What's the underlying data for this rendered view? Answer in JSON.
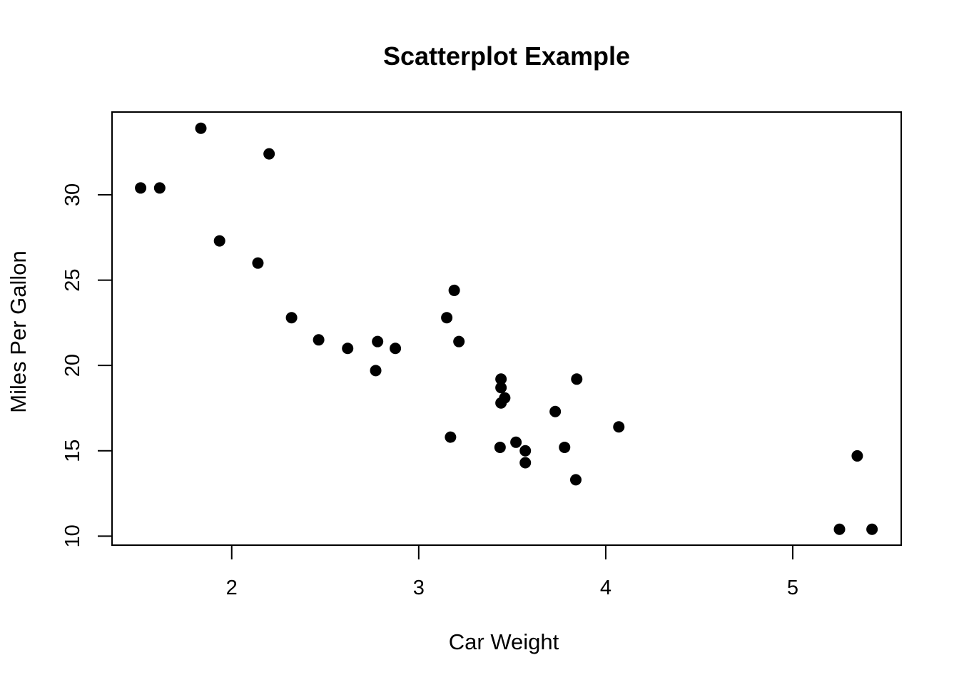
{
  "chart_data": {
    "type": "scatter",
    "title": "Scatterplot Example",
    "xlabel": "Car Weight",
    "ylabel": "Miles Per Gallon",
    "xlim": [
      1.36,
      5.58
    ],
    "ylim": [
      9.47,
      34.85
    ],
    "x_ticks": [
      2,
      3,
      4,
      5
    ],
    "y_ticks": [
      10,
      15,
      20,
      25,
      30
    ],
    "x_tick_labels": [
      "2",
      "3",
      "4",
      "5"
    ],
    "y_tick_labels": [
      "10",
      "15",
      "20",
      "25",
      "30"
    ],
    "grid": false,
    "legend": "none",
    "marker_color": "#000000",
    "points": [
      {
        "x": 2.62,
        "y": 21.0
      },
      {
        "x": 2.875,
        "y": 21.0
      },
      {
        "x": 2.32,
        "y": 22.8
      },
      {
        "x": 3.215,
        "y": 21.4
      },
      {
        "x": 3.44,
        "y": 18.7
      },
      {
        "x": 3.46,
        "y": 18.1
      },
      {
        "x": 3.57,
        "y": 14.3
      },
      {
        "x": 3.19,
        "y": 24.4
      },
      {
        "x": 3.15,
        "y": 22.8
      },
      {
        "x": 3.44,
        "y": 19.2
      },
      {
        "x": 3.44,
        "y": 17.8
      },
      {
        "x": 4.07,
        "y": 16.4
      },
      {
        "x": 3.73,
        "y": 17.3
      },
      {
        "x": 3.78,
        "y": 15.2
      },
      {
        "x": 5.25,
        "y": 10.4
      },
      {
        "x": 5.424,
        "y": 10.4
      },
      {
        "x": 5.345,
        "y": 14.7
      },
      {
        "x": 2.2,
        "y": 32.4
      },
      {
        "x": 1.615,
        "y": 30.4
      },
      {
        "x": 1.835,
        "y": 33.9
      },
      {
        "x": 2.465,
        "y": 21.5
      },
      {
        "x": 3.52,
        "y": 15.5
      },
      {
        "x": 3.435,
        "y": 15.2
      },
      {
        "x": 3.84,
        "y": 13.3
      },
      {
        "x": 3.845,
        "y": 19.2
      },
      {
        "x": 1.935,
        "y": 27.3
      },
      {
        "x": 2.14,
        "y": 26.0
      },
      {
        "x": 1.513,
        "y": 30.4
      },
      {
        "x": 3.17,
        "y": 15.8
      },
      {
        "x": 2.77,
        "y": 19.7
      },
      {
        "x": 3.57,
        "y": 15.0
      },
      {
        "x": 2.78,
        "y": 21.4
      }
    ]
  }
}
